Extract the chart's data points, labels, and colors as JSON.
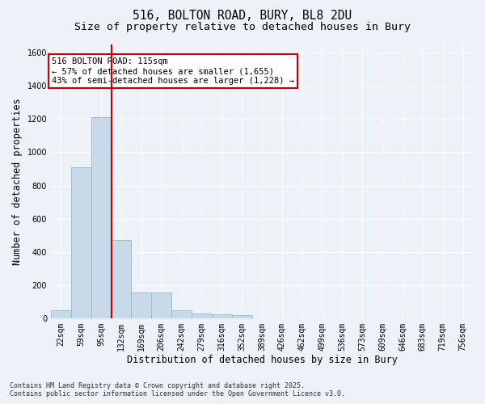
{
  "title_line1": "516, BOLTON ROAD, BURY, BL8 2DU",
  "title_line2": "Size of property relative to detached houses in Bury",
  "xlabel": "Distribution of detached houses by size in Bury",
  "ylabel": "Number of detached properties",
  "bar_color": "#c8d9ea",
  "bar_edge_color": "#9ab5cc",
  "categories": [
    "22sqm",
    "59sqm",
    "95sqm",
    "132sqm",
    "169sqm",
    "206sqm",
    "242sqm",
    "279sqm",
    "316sqm",
    "352sqm",
    "389sqm",
    "426sqm",
    "462sqm",
    "499sqm",
    "536sqm",
    "573sqm",
    "609sqm",
    "646sqm",
    "683sqm",
    "719sqm",
    "756sqm"
  ],
  "values": [
    50,
    910,
    1210,
    470,
    155,
    155,
    50,
    30,
    25,
    20,
    0,
    0,
    0,
    0,
    0,
    0,
    0,
    0,
    0,
    0,
    0
  ],
  "ylim": [
    0,
    1650
  ],
  "yticks": [
    0,
    200,
    400,
    600,
    800,
    1000,
    1200,
    1400,
    1600
  ],
  "vline_color": "#cc0000",
  "annotation_text_line1": "516 BOLTON ROAD: 115sqm",
  "annotation_text_line2": "← 57% of detached houses are smaller (1,655)",
  "annotation_text_line3": "43% of semi-detached houses are larger (1,228) →",
  "footnote1": "Contains HM Land Registry data © Crown copyright and database right 2025.",
  "footnote2": "Contains public sector information licensed under the Open Government Licence v3.0.",
  "bg_color": "#edf1f8",
  "plot_bg_color": "#edf1f8",
  "grid_color": "#ffffff",
  "title_fontsize": 10.5,
  "subtitle_fontsize": 9.5,
  "axis_label_fontsize": 8.5,
  "tick_fontsize": 7,
  "annotation_fontsize": 7.5,
  "footnote_fontsize": 6
}
